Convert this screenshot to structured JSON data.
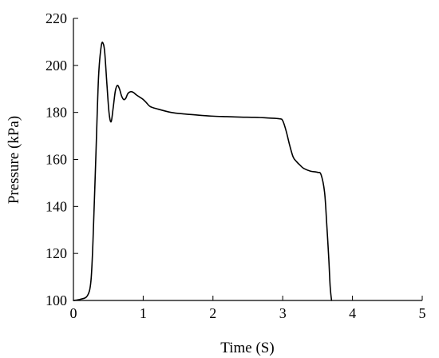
{
  "chart_data": {
    "type": "line",
    "title": "",
    "xlabel": "Time (S)",
    "ylabel": "Pressure (kPa)",
    "xlim": [
      0,
      5
    ],
    "ylim": [
      100,
      220
    ],
    "xticks": [
      0,
      1,
      2,
      3,
      4,
      5
    ],
    "yticks": [
      100,
      120,
      140,
      160,
      180,
      200,
      220
    ],
    "grid": false,
    "legend": "none",
    "line_color": "#000000",
    "series": [
      {
        "x": [
          0.0,
          0.1,
          0.2,
          0.25,
          0.28,
          0.32,
          0.36,
          0.4,
          0.43,
          0.45,
          0.48,
          0.51,
          0.54,
          0.57,
          0.6,
          0.63,
          0.66,
          0.69,
          0.72,
          0.75,
          0.78,
          0.82,
          0.86,
          0.9,
          0.95,
          1.0,
          1.05,
          1.1,
          1.2,
          1.4,
          1.6,
          1.8,
          2.0,
          2.2,
          2.4,
          2.6,
          2.8,
          2.95,
          3.0,
          3.05,
          3.1,
          3.15,
          3.2,
          3.25,
          3.3,
          3.4,
          3.5,
          3.55,
          3.6,
          3.63,
          3.66,
          3.68,
          3.7
        ],
        "y": [
          100,
          100.5,
          102,
          108,
          125,
          160,
          195,
          208.5,
          209,
          205,
          192,
          180,
          176,
          182,
          189,
          191.5,
          190,
          187,
          185.5,
          186,
          188,
          188.8,
          188.5,
          187.5,
          186.5,
          185.5,
          184,
          182.5,
          181.5,
          180,
          179.3,
          178.8,
          178.4,
          178.2,
          178,
          177.9,
          177.6,
          177.3,
          176.5,
          172,
          166,
          161,
          159,
          157.5,
          156.2,
          155,
          154.5,
          153.5,
          146,
          133,
          118,
          106,
          100
        ]
      }
    ]
  }
}
